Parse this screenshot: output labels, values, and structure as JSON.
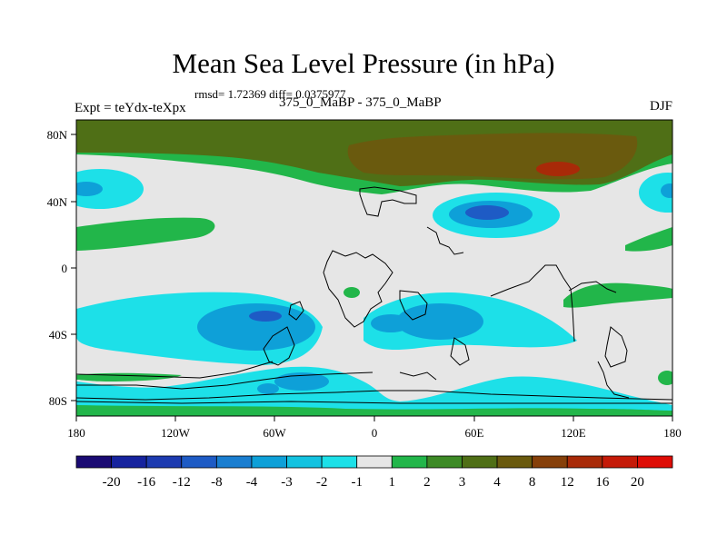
{
  "header": {
    "title": "Mean Sea Level Pressure (in hPa)",
    "stats": "rmsd= 1.72369 diff= 0.0375977",
    "left_label": "Expt = teYdx-teXpx",
    "center_label": "375_0_MaBP - 375_0_MaBP",
    "right_label": "DJF"
  },
  "axes": {
    "lon_ticks": [
      "180",
      "120W",
      "60W",
      "0",
      "60E",
      "120E",
      "180"
    ],
    "lat_ticks": [
      "80N",
      "40N",
      "0",
      "40S",
      "80S"
    ]
  },
  "colorbar": {
    "labels": [
      "-20",
      "-16",
      "-12",
      "-8",
      "-4",
      "-3",
      "-2",
      "-1",
      "1",
      "2",
      "3",
      "4",
      "8",
      "12",
      "16",
      "20"
    ],
    "colors": [
      "#1a0a73",
      "#16239e",
      "#1d3bb0",
      "#1e5bc5",
      "#1a7ed0",
      "#0ea0d8",
      "#13c2e0",
      "#1de0e8",
      "#e6e6e6",
      "#22b64a",
      "#3d8a26",
      "#4f6f16",
      "#6a5a0e",
      "#86400a",
      "#a82a08",
      "#c51a08",
      "#de0d06"
    ]
  },
  "map": {
    "background_color": "#e6e6e6",
    "neg_colors": {
      "dark": "#1e5bc5",
      "mid": "#0ea0d8",
      "light": "#1de0e8"
    },
    "pos_colors": {
      "green": "#22b64a",
      "olive": "#4f6f16",
      "brown": "#6a5a0e",
      "red": "#a82a08"
    }
  }
}
